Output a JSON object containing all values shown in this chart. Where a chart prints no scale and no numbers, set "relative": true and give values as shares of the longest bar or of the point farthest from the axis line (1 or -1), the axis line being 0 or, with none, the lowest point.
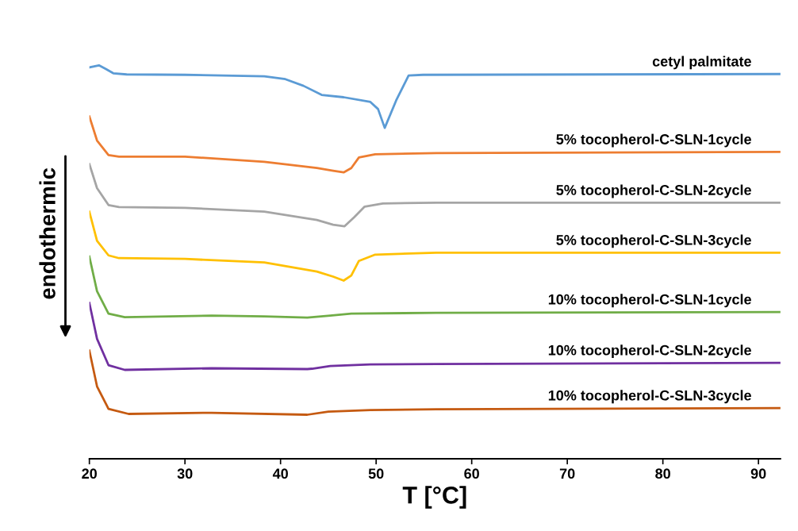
{
  "chart_data": {
    "type": "line",
    "relative": true,
    "xlabel": "T [°C]",
    "xlim": [
      20,
      92.3
    ],
    "xticks": [
      20,
      30,
      40,
      50,
      60,
      70,
      80,
      90
    ],
    "grid": false,
    "legend": false,
    "marker": "none",
    "line_style": "solid",
    "tick_labels": "x",
    "annotations": [
      "endothermic"
    ],
    "series": [
      {
        "name": "cetyl palmitate",
        "color": "#5b9bd5",
        "x": [
          20.0,
          21.0,
          21.7,
          22.5,
          23.9,
          30.0,
          38.3,
          40.5,
          42.4,
          44.3,
          46.6,
          49.4,
          50.2,
          50.9,
          52.1,
          53.4,
          54.9,
          92.3
        ],
        "values": [
          0.995,
          1.0,
          0.991,
          0.98,
          0.977,
          0.976,
          0.972,
          0.965,
          0.948,
          0.925,
          0.919,
          0.907,
          0.889,
          0.841,
          0.911,
          0.974,
          0.976,
          0.978
        ]
      },
      {
        "name": "5% tocopherol-C-SLN-1cycle",
        "color": "#ed7d31",
        "x": [
          20.0,
          20.8,
          22.0,
          23.1,
          30.0,
          38.3,
          43.8,
          45.5,
          46.6,
          47.4,
          48.2,
          49.9,
          56.3,
          92.3
        ],
        "values": [
          0.87,
          0.809,
          0.772,
          0.768,
          0.768,
          0.755,
          0.739,
          0.732,
          0.728,
          0.739,
          0.766,
          0.774,
          0.777,
          0.78
        ]
      },
      {
        "name": "5% tocopherol-C-SLN-2cycle",
        "color": "#a5a5a5",
        "x": [
          20.0,
          20.8,
          22.0,
          23.1,
          30.0,
          38.3,
          43.8,
          45.5,
          46.7,
          47.7,
          48.8,
          50.7,
          56.3,
          92.3
        ],
        "values": [
          0.749,
          0.688,
          0.645,
          0.64,
          0.638,
          0.628,
          0.607,
          0.595,
          0.591,
          0.614,
          0.641,
          0.649,
          0.651,
          0.651
        ]
      },
      {
        "name": "5% tocopherol-C-SLN-3cycle",
        "color": "#ffc000",
        "x": [
          20.0,
          20.8,
          22.0,
          23.1,
          30.0,
          38.3,
          43.8,
          45.5,
          46.6,
          47.4,
          48.2,
          49.9,
          56.3,
          92.3
        ],
        "values": [
          0.628,
          0.554,
          0.517,
          0.51,
          0.508,
          0.499,
          0.476,
          0.463,
          0.453,
          0.466,
          0.503,
          0.519,
          0.524,
          0.524
        ]
      },
      {
        "name": "10% tocopherol-C-SLN-1cycle",
        "color": "#70ad47",
        "x": [
          20.0,
          20.8,
          22.0,
          23.7,
          32.8,
          38.3,
          42.8,
          45.2,
          47.4,
          56.3,
          92.3
        ],
        "values": [
          0.514,
          0.426,
          0.369,
          0.36,
          0.364,
          0.362,
          0.359,
          0.364,
          0.369,
          0.371,
          0.373
        ]
      },
      {
        "name": "10% tocopherol-C-SLN-2cycle",
        "color": "#7030a0",
        "x": [
          20.0,
          20.8,
          22.0,
          23.7,
          32.8,
          42.8,
          43.3,
          45.2,
          49.4,
          56.3,
          92.3
        ],
        "values": [
          0.396,
          0.305,
          0.238,
          0.226,
          0.23,
          0.228,
          0.229,
          0.236,
          0.24,
          0.241,
          0.244
        ]
      },
      {
        "name": "10% tocopherol-C-SLN-3cycle",
        "color": "#c55a11",
        "x": [
          20.0,
          20.8,
          22.0,
          24.1,
          32.8,
          42.8,
          45.0,
          49.4,
          56.3,
          92.3
        ],
        "values": [
          0.275,
          0.184,
          0.127,
          0.114,
          0.117,
          0.112,
          0.12,
          0.124,
          0.126,
          0.129
        ]
      }
    ]
  }
}
